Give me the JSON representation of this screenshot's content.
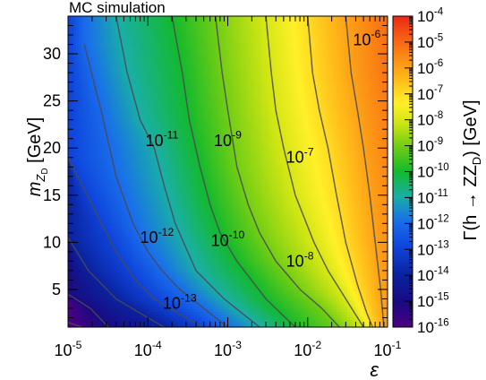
{
  "chart_data": {
    "type": "heatmap",
    "title": "MC simulation",
    "xlabel_symbol": "ε",
    "ylabel_main": "m",
    "ylabel_sub": "Z",
    "ylabel_subsub": "D",
    "ylabel_unit": " [GeV]",
    "zlabel_main": "Γ(h → ZZ",
    "zlabel_sub": "D",
    "zlabel_unit": ") [GeV]",
    "x_scale": "log",
    "xlim": [
      1e-05,
      0.1
    ],
    "x_ticks": [
      {
        "value": 1e-05,
        "base": "10",
        "exp": "-5"
      },
      {
        "value": 0.0001,
        "base": "10",
        "exp": "-4"
      },
      {
        "value": 0.001,
        "base": "10",
        "exp": "-3"
      },
      {
        "value": 0.01,
        "base": "10",
        "exp": "-2"
      },
      {
        "value": 0.1,
        "base": "10",
        "exp": "-1"
      }
    ],
    "ylim": [
      1,
      34
    ],
    "y_ticks": [
      {
        "value": 5,
        "label": "5"
      },
      {
        "value": 10,
        "label": "10"
      },
      {
        "value": 15,
        "label": "15"
      },
      {
        "value": 20,
        "label": "20"
      },
      {
        "value": 25,
        "label": "25"
      },
      {
        "value": 30,
        "label": "30"
      }
    ],
    "z_scale": "log",
    "zlim_exp": [
      -16,
      -4
    ],
    "z_ticks": [
      {
        "base": "10",
        "exp": "-4"
      },
      {
        "base": "10",
        "exp": "-5"
      },
      {
        "base": "10",
        "exp": "-6"
      },
      {
        "base": "10",
        "exp": "-7"
      },
      {
        "base": "10",
        "exp": "-8"
      },
      {
        "base": "10",
        "exp": "-9"
      },
      {
        "base": "10",
        "exp": "-10"
      },
      {
        "base": "10",
        "exp": "-11"
      },
      {
        "base": "10",
        "exp": "-12"
      },
      {
        "base": "10",
        "exp": "-13"
      },
      {
        "base": "10",
        "exp": "-14"
      },
      {
        "base": "10",
        "exp": "-15"
      },
      {
        "base": "10",
        "exp": "-16"
      }
    ],
    "contour_label_positions": [
      {
        "exp": -13,
        "base": "10",
        "x": 0.00025,
        "y": 3.5
      },
      {
        "exp": -12,
        "base": "10",
        "x": 0.00013,
        "y": 10.5
      },
      {
        "exp": -11,
        "base": "10",
        "x": 0.00015,
        "y": 20.8
      },
      {
        "exp": -10,
        "base": "10",
        "x": 0.001,
        "y": 10.2
      },
      {
        "exp": -9,
        "base": "10",
        "x": 0.001,
        "y": 20.8
      },
      {
        "exp": -8,
        "base": "10",
        "x": 0.008,
        "y": 8.0
      },
      {
        "exp": -7,
        "base": "10",
        "x": 0.008,
        "y": 19.0
      },
      {
        "exp": -6,
        "base": "10",
        "x": 0.055,
        "y": 31.5
      }
    ],
    "contours": [
      {
        "level_exp": -16,
        "points": [
          [
            1e-05,
            1.5
          ],
          [
            1.5e-05,
            1
          ]
        ]
      },
      {
        "level_exp": -15,
        "points": [
          [
            1e-05,
            4.5
          ],
          [
            1.9e-05,
            3.0
          ],
          [
            3.2e-05,
            1
          ]
        ]
      },
      {
        "level_exp": -14,
        "points": [
          [
            1e-05,
            10.5
          ],
          [
            1.8e-05,
            7.0
          ],
          [
            4e-05,
            4.0
          ],
          [
            0.0001,
            2.0
          ],
          [
            0.00016,
            1
          ]
        ]
      },
      {
        "level_exp": -13,
        "points": [
          [
            1e-05,
            19
          ],
          [
            2e-05,
            14.0
          ],
          [
            4e-05,
            9.0
          ],
          [
            7e-05,
            6.0
          ],
          [
            0.00012,
            4.0
          ],
          [
            0.0003,
            2.0
          ],
          [
            0.0005,
            1
          ]
        ]
      },
      {
        "level_exp": -12,
        "points": [
          [
            1.6e-05,
            31
          ],
          [
            2.6e-05,
            24.0
          ],
          [
            4e-05,
            17.0
          ],
          [
            6.5e-05,
            12.0
          ],
          [
            0.0001,
            9.0
          ],
          [
            0.00015,
            7.0
          ],
          [
            0.00025,
            5.0
          ],
          [
            0.0005,
            3.0
          ],
          [
            0.001,
            1
          ]
        ]
      },
      {
        "level_exp": -11,
        "points": [
          [
            4e-05,
            34
          ],
          [
            5.5e-05,
            28.0
          ],
          [
            8e-05,
            23.0
          ],
          [
            0.00012,
            20.0
          ],
          [
            0.00016,
            16.0
          ],
          [
            0.00022,
            12.0
          ],
          [
            0.0004,
            7.0
          ],
          [
            0.0009,
            4.0
          ],
          [
            0.0025,
            1
          ]
        ]
      },
      {
        "level_exp": -10,
        "points": [
          [
            0.0002,
            34
          ],
          [
            0.00027,
            28.0
          ],
          [
            0.00033,
            23.0
          ],
          [
            0.00045,
            18.0
          ],
          [
            0.0006,
            14.0
          ],
          [
            0.0008,
            11.0
          ],
          [
            0.0013,
            8.0
          ],
          [
            0.003,
            4.0
          ],
          [
            0.007,
            1
          ]
        ]
      },
      {
        "level_exp": -9,
        "points": [
          [
            0.0007,
            34
          ],
          [
            0.00085,
            28.0
          ],
          [
            0.001,
            24.0
          ],
          [
            0.0013,
            18.0
          ],
          [
            0.0018,
            14.0
          ],
          [
            0.0025,
            11.0
          ],
          [
            0.004,
            8.0
          ],
          [
            0.008,
            5.0
          ],
          [
            0.015,
            3.0
          ],
          [
            0.025,
            1
          ]
        ]
      },
      {
        "level_exp": -8,
        "points": [
          [
            0.003,
            34
          ],
          [
            0.0035,
            28.0
          ],
          [
            0.004,
            24.0
          ],
          [
            0.005,
            20.0
          ],
          [
            0.007,
            15.0
          ],
          [
            0.012,
            10.0
          ],
          [
            0.018,
            7.0
          ],
          [
            0.03,
            4.0
          ],
          [
            0.05,
            1
          ]
        ]
      },
      {
        "level_exp": -7,
        "points": [
          [
            0.01,
            34
          ],
          [
            0.0115,
            28.0
          ],
          [
            0.014,
            24.0
          ],
          [
            0.018,
            20.0
          ],
          [
            0.023,
            15.0
          ],
          [
            0.03,
            10.0
          ],
          [
            0.042,
            5.5
          ],
          [
            0.055,
            2.5
          ],
          [
            0.065,
            1
          ]
        ]
      },
      {
        "level_exp": -6,
        "points": [
          [
            0.03,
            34
          ],
          [
            0.035,
            28.0
          ],
          [
            0.042,
            24.0
          ],
          [
            0.05,
            20.0
          ],
          [
            0.06,
            15.0
          ],
          [
            0.07,
            10.0
          ],
          [
            0.082,
            5.0
          ],
          [
            0.09,
            1
          ]
        ]
      }
    ]
  }
}
